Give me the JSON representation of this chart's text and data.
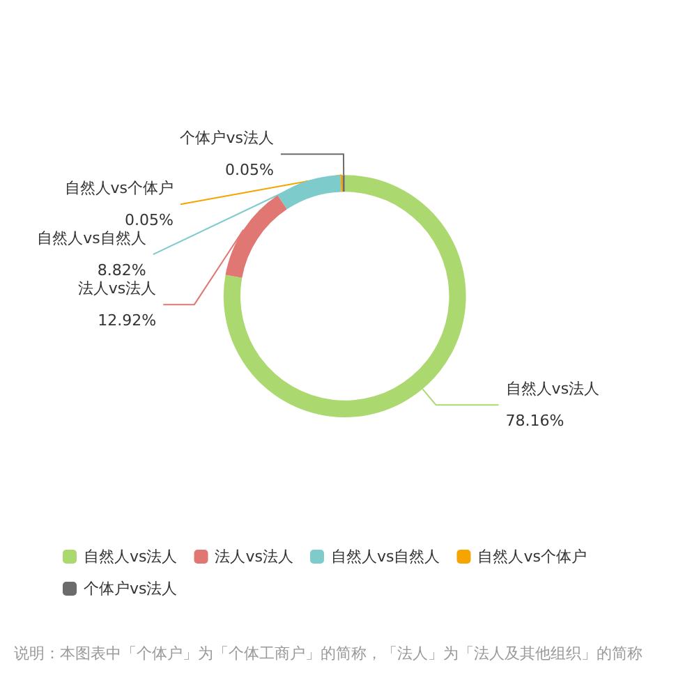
{
  "chart_data": {
    "type": "donut",
    "categories": [
      "自然人vs法人",
      "法人vs法人",
      "自然人vs自然人",
      "自然人vs个体户",
      "个体户vs法人"
    ],
    "values": [
      78.16,
      12.92,
      8.82,
      0.05,
      0.05
    ],
    "colors": [
      "#acd96f",
      "#e07772",
      "#7ecbcb",
      "#f5a500",
      "#6b6b6b"
    ],
    "value_labels": [
      "78.16%",
      "12.92%",
      "8.82%",
      "0.05%",
      "0.05%"
    ],
    "legend": "bottom",
    "annotations": [
      "说明：本图表中「个体户」为「个体工商户」的简称，「法人」为「法人及其他组织」的简称"
    ]
  }
}
